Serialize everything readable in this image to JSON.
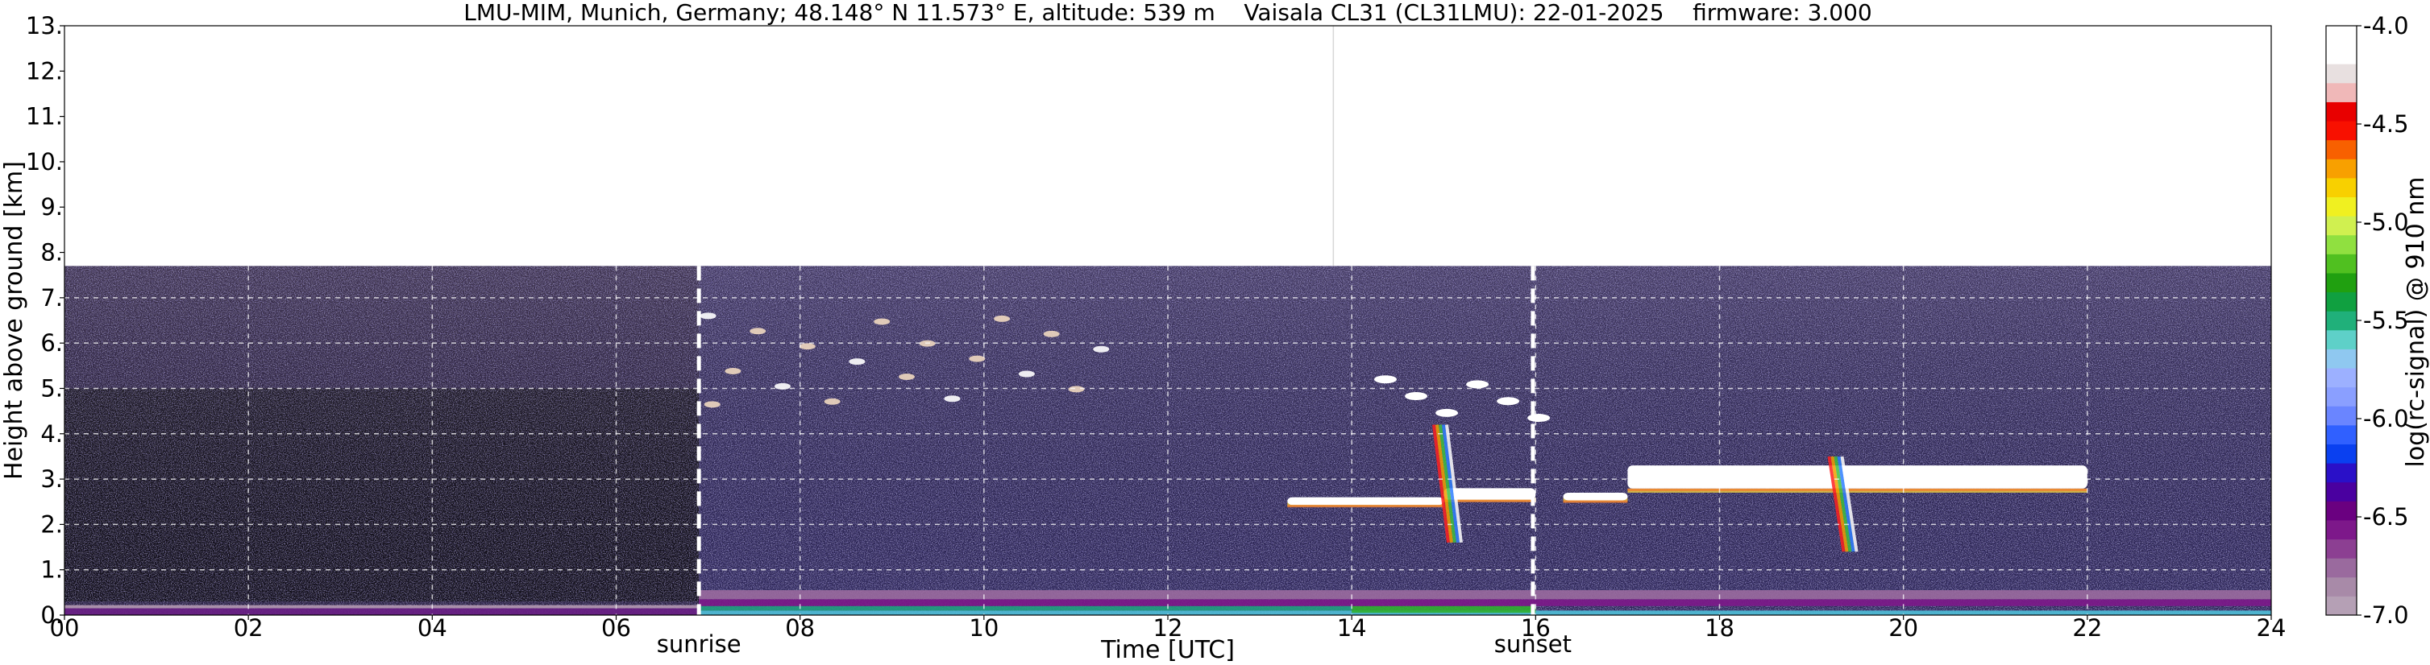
{
  "chart_data": {
    "type": "heatmap",
    "title": "LMU-MIM, Munich, Germany; 48.148° N 11.573° E, altitude: 539 m    Vaisala CL31 (CL31LMU): 22-01-2025    firmware: 3.000",
    "xlabel": "Time [UTC]",
    "ylabel": "Height above ground [km]",
    "xlim": [
      0,
      24
    ],
    "ylim": [
      0,
      13
    ],
    "xticks": [
      "00",
      "02",
      "04",
      "06",
      "08",
      "10",
      "12",
      "14",
      "16",
      "18",
      "20",
      "22",
      "24"
    ],
    "yticks": [
      "0.",
      "1.",
      "2.",
      "3.",
      "4.",
      "5.",
      "6.",
      "7.",
      "8.",
      "9.",
      "10.",
      "11.",
      "12.",
      "13."
    ],
    "grid": "dashed white gridlines inside the data region",
    "data_top_km": 7.7,
    "events": [
      {
        "label": "sunrise",
        "time_utc": 6.9
      },
      {
        "label": "sunset",
        "time_utc": 15.97
      }
    ],
    "colorbar": {
      "label": "log(rc-signal) @ 910 nm",
      "range": [
        -7.0,
        -4.0
      ],
      "ticks": [
        "-7.0",
        "-6.5",
        "-6.0",
        "-5.5",
        "-5.0",
        "-4.5",
        "-4.0"
      ],
      "colors_bottom_to_top": [
        "#b5a0b5",
        "#a88aa8",
        "#9a6a9e",
        "#8c3f92",
        "#7d188a",
        "#6a0080",
        "#4a00a0",
        "#2a10c8",
        "#0a40f0",
        "#3060ff",
        "#6a85ff",
        "#8a9fff",
        "#9cb0ff",
        "#8fc8f0",
        "#5ed0c8",
        "#20b07a",
        "#10a040",
        "#20a010",
        "#50c020",
        "#90e040",
        "#d0f050",
        "#f0f020",
        "#f8d000",
        "#f8a000",
        "#f86000",
        "#f81000",
        "#e80000",
        "#f0b8b8",
        "#e8e0e0",
        "#ffffff",
        "#ffffff"
      ]
    },
    "features": [
      {
        "name": "surface aerosol layer",
        "time_range": [
          0,
          24
        ],
        "height_km": [
          0,
          0.3
        ]
      },
      {
        "name": "cloud layer",
        "time_range": [
          13.3,
          15.0
        ],
        "height_km": [
          2.4,
          2.6
        ]
      },
      {
        "name": "cloud layer",
        "time_range": [
          15.0,
          16.0
        ],
        "height_km": [
          2.5,
          2.8
        ]
      },
      {
        "name": "cloud layer",
        "time_range": [
          16.3,
          17.0
        ],
        "height_km": [
          2.5,
          2.7
        ]
      },
      {
        "name": "cloud layer",
        "time_range": [
          17.0,
          22.0
        ],
        "height_km": [
          2.7,
          3.3
        ]
      },
      {
        "name": "cloud patches",
        "time_range": [
          14.2,
          16.2
        ],
        "height_km": [
          4.2,
          5.2
        ]
      },
      {
        "name": "ice cloud fragments",
        "time_range": [
          7.0,
          11.5
        ],
        "height_km": [
          4.5,
          6.6
        ]
      },
      {
        "name": "precipitation fall streaks",
        "time_range": [
          14.7,
          15.4
        ],
        "height_km": [
          1.6,
          4.2
        ]
      },
      {
        "name": "precipitation fall streaks",
        "time_range": [
          19.1,
          19.6
        ],
        "height_km": [
          1.4,
          3.5
        ]
      }
    ]
  }
}
